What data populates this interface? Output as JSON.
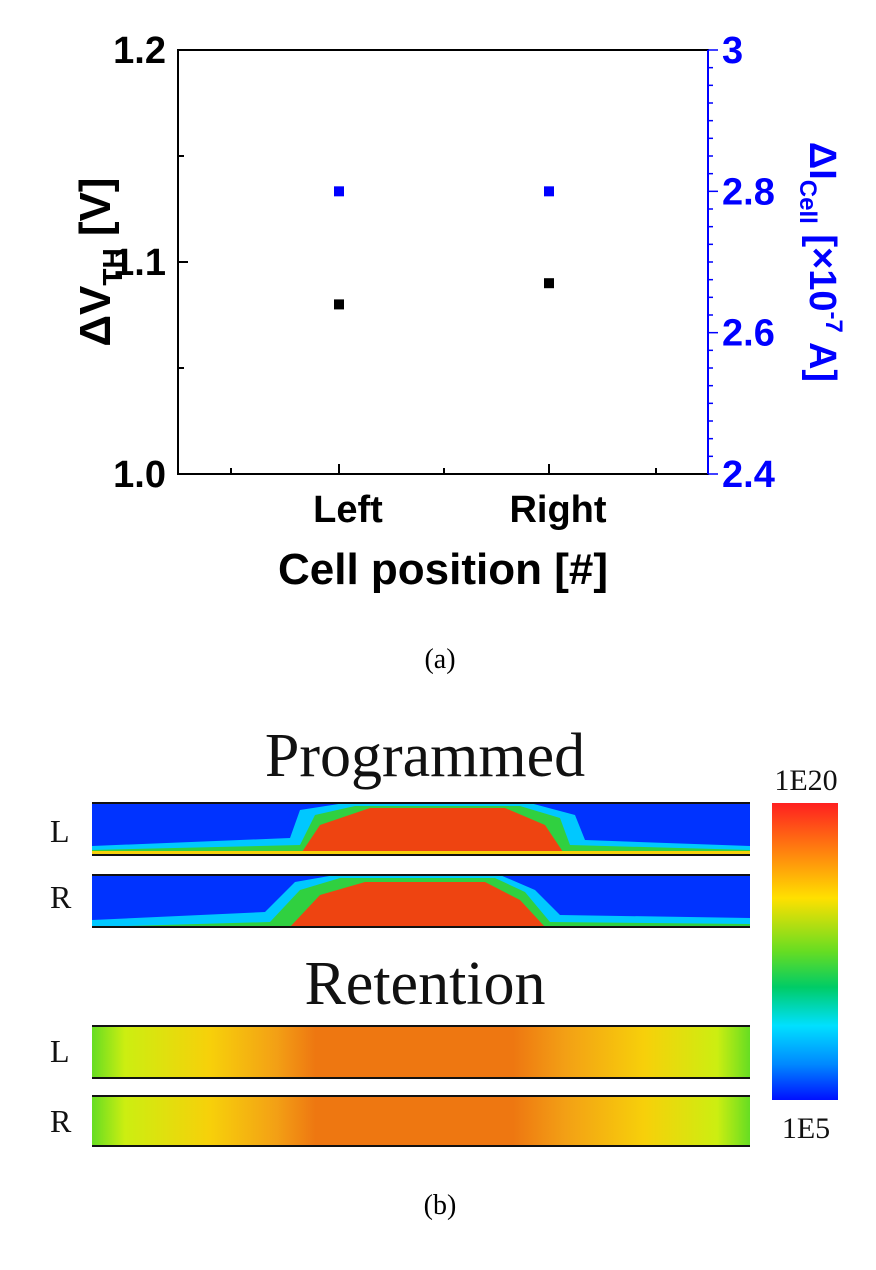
{
  "chart_data": [
    {
      "type": "scatter",
      "xlabel": "Cell position [#]",
      "categories": [
        "Left",
        "Right"
      ],
      "left_axis": {
        "label_main": "ΔV",
        "label_sub": "TH",
        "label_unit": "[V]",
        "ylim": [
          1.0,
          1.2
        ],
        "ticks": [
          "1.0",
          "1.1",
          "1.2"
        ],
        "color": "#000000"
      },
      "right_axis": {
        "label_main": "ΔI",
        "label_sub": "Cell",
        "label_unit_prefix": "[×10",
        "label_exp": "-7",
        "label_unit_suffix": " A]",
        "ylim": [
          2.4,
          3.0
        ],
        "ticks": [
          "2.4",
          "2.6",
          "2.8",
          "3"
        ],
        "color": "#0000ff"
      },
      "series": [
        {
          "axis": "left",
          "color": "#000000",
          "values": [
            1.08,
            1.09
          ]
        },
        {
          "axis": "right",
          "color": "#0000ff",
          "values": [
            2.8,
            2.8
          ]
        }
      ],
      "caption": "(a)"
    },
    {
      "type": "heatmap",
      "colorbar": {
        "max_label": "1E20",
        "min_label": "1E5"
      },
      "groups": [
        {
          "title": "Programmed",
          "rows": [
            {
              "label": "L"
            },
            {
              "label": "R"
            }
          ]
        },
        {
          "title": "Retention",
          "rows": [
            {
              "label": "L"
            },
            {
              "label": "R"
            }
          ]
        }
      ],
      "caption": "(b)"
    }
  ]
}
